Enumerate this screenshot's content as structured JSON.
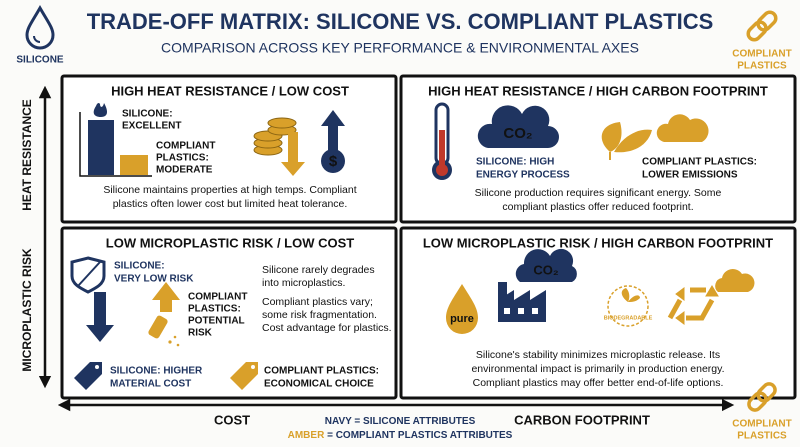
{
  "header": {
    "title": "TRADE-OFF MATRIX: SILICONE VS. COMPLIANT PLASTICS",
    "subtitle": "COMPARISON ACROSS KEY PERFORMANCE & ENVIRONMENTAL AXES"
  },
  "badges": {
    "silicone": "SILICONE",
    "compliant_top": [
      "COMPLIANT",
      "PLASTICS"
    ],
    "compliant_bottom": [
      "COMPLIANT",
      "PLASTICS"
    ]
  },
  "axes": {
    "y": [
      "HEAT RESISTANCE",
      "MICROPLASTIC RISK"
    ],
    "x": [
      "COST",
      "CARBON FOOTPRINT"
    ]
  },
  "legend": [
    {
      "key": "NAVY",
      "text": "= SILICONE ATTRIBUTES"
    },
    {
      "key": "AMBER",
      "text": "= COMPLIANT PLASTICS ATTRIBUTES"
    }
  ],
  "quadrants": [
    {
      "title": "HIGH HEAT RESISTANCE / LOW COST",
      "silicone": [
        "SILICONE:",
        "EXCELLENT"
      ],
      "compliant": [
        "COMPLIANT",
        "PLASTICS:",
        "MODERATE"
      ],
      "description": [
        "Silicone maintains properties at high temps. Compliant",
        "plastics often lower cost but limited heat tolerance."
      ]
    },
    {
      "title": "HIGH HEAT RESISTANCE / HIGH CARBON FOOTPRINT",
      "icon_text": "CO₂",
      "silicone": [
        "SILICONE: HIGH",
        "ENERGY PROCESS"
      ],
      "compliant": [
        "COMPLIANT PLASTICS:",
        "LOWER EMISSIONS"
      ],
      "description": [
        "Silicone production requires significant energy. Some",
        "compliant plastics offer reduced footprint."
      ]
    },
    {
      "title": "LOW MICROPLASTIC RISK / LOW COST",
      "silicone": [
        "SILICONE:",
        "VERY LOW RISK"
      ],
      "compliant": [
        "COMPLIANT",
        "PLASTICS:",
        "POTENTIAL",
        "RISK"
      ],
      "notes": [
        [
          "Silicone rarely degrades",
          "into microplastics."
        ],
        [
          "Compliant plastics vary;",
          "some risk fragmentation.",
          "Cost advantage for plastics."
        ]
      ],
      "cost_silicone": [
        "SILICONE: HIGHER",
        "MATERIAL COST"
      ],
      "cost_compliant": [
        "COMPLIANT PLASTICS:",
        "ECONOMICAL CHOICE"
      ]
    },
    {
      "title": "LOW MICROPLASTIC RISK / HIGH CARBON FOOTPRINT",
      "icon_pure": "pure",
      "icon_co2": "CO₂",
      "icon_bio": "BIODEGRADABLE",
      "description": [
        "Silicone's stability minimizes microplastic release. Its",
        "environmental impact is primarily in production energy.",
        "Compliant plastics may offer better end-of-life options."
      ]
    }
  ]
}
